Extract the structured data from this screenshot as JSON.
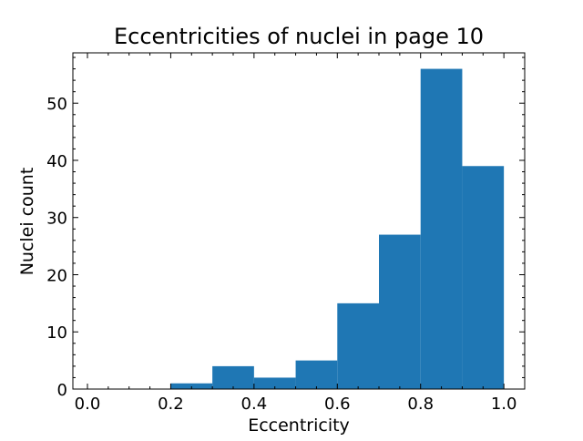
{
  "chart_data": {
    "type": "bar",
    "title": "Eccentricities of nuclei in page 10",
    "xlabel": "Eccentricity",
    "ylabel": "Nuclei count",
    "xlim": [
      -0.035,
      1.05
    ],
    "ylim": [
      0,
      58.8
    ],
    "grid": false,
    "legend": "none",
    "colors": {
      "bar": "#1f77b4",
      "axes": "#000000",
      "background": "#ffffff"
    },
    "x_ticks": [
      0.0,
      0.2,
      0.4,
      0.6,
      0.8,
      1.0
    ],
    "x_tick_labels": [
      "0.0",
      "0.2",
      "0.4",
      "0.6",
      "0.8",
      "1.0"
    ],
    "y_ticks": [
      0,
      10,
      20,
      30,
      40,
      50
    ],
    "y_tick_labels": [
      "0",
      "10",
      "20",
      "30",
      "40",
      "50"
    ],
    "bins": [
      {
        "x0": 0.0,
        "x1": 0.1,
        "count": 0
      },
      {
        "x0": 0.1,
        "x1": 0.2,
        "count": 0
      },
      {
        "x0": 0.2,
        "x1": 0.3,
        "count": 1
      },
      {
        "x0": 0.3,
        "x1": 0.4,
        "count": 4
      },
      {
        "x0": 0.4,
        "x1": 0.5,
        "count": 2
      },
      {
        "x0": 0.5,
        "x1": 0.6,
        "count": 5
      },
      {
        "x0": 0.6,
        "x1": 0.7,
        "count": 15
      },
      {
        "x0": 0.7,
        "x1": 0.8,
        "count": 27
      },
      {
        "x0": 0.8,
        "x1": 0.9,
        "count": 56
      },
      {
        "x0": 0.9,
        "x1": 1.0,
        "count": 39
      }
    ]
  }
}
